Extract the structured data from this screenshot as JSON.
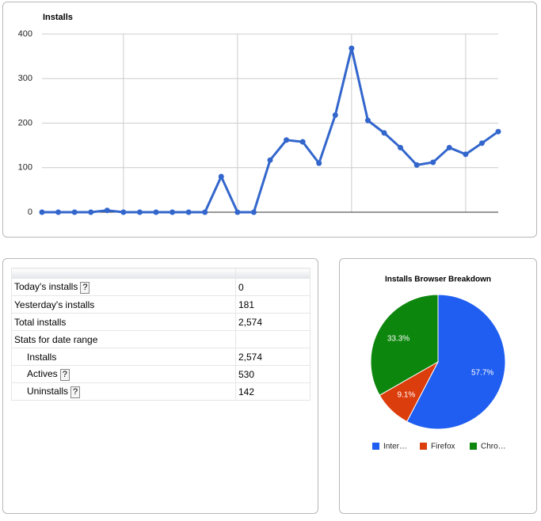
{
  "chart_data": [
    {
      "type": "line",
      "title": "Installs",
      "color": "#3366cc",
      "values": [
        0,
        0,
        0,
        0,
        4,
        0,
        0,
        0,
        0,
        0,
        0,
        80,
        0,
        0,
        117,
        162,
        158,
        110,
        218,
        368,
        206,
        178,
        145,
        106,
        112,
        145,
        130,
        155,
        181
      ],
      "ylim": [
        0,
        400
      ],
      "yticks": [
        0,
        100,
        200,
        300,
        400
      ],
      "grid": true
    },
    {
      "type": "pie",
      "title": "Installs Browser Breakdown",
      "categories": [
        "Inter…",
        "Firefox",
        "Chro…"
      ],
      "values": [
        57.7,
        9.1,
        33.3
      ],
      "value_labels": [
        "57.7%",
        "9.1%",
        "33.3%"
      ],
      "colors": [
        "#1f5ef0",
        "#dc3d0c",
        "#0d860d"
      ],
      "legend": "bottom"
    }
  ],
  "table": {
    "rows": [
      {
        "label": "Today's installs",
        "help": "?",
        "value": "0"
      },
      {
        "label": "Yesterday's installs",
        "value": "181"
      },
      {
        "label": "Total installs",
        "value": "2,574"
      },
      {
        "label": "Stats for date range"
      },
      {
        "label": "Installs",
        "value": "2,574"
      },
      {
        "label": "Actives",
        "help": "?",
        "value": "530"
      },
      {
        "label": "Uninstalls",
        "help": "?",
        "value": "142"
      }
    ]
  }
}
